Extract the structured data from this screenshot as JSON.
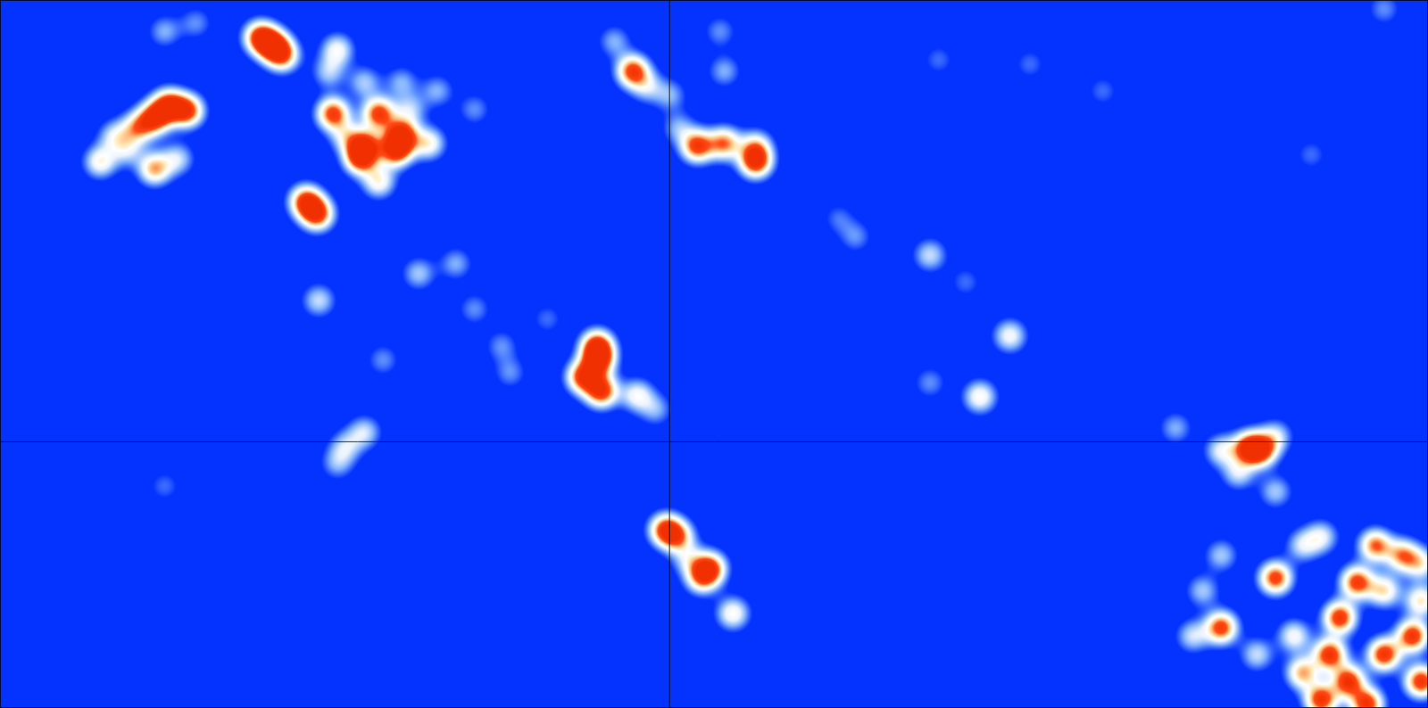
{
  "chart_data": {
    "type": "heatmap",
    "xlim": [
      0,
      100
    ],
    "ylim": [
      0,
      50
    ],
    "xticks": [
      46.9
    ],
    "yticks": [
      18.8
    ],
    "grid": true,
    "tick_labels": false,
    "value_range": [
      0,
      1
    ],
    "points": [
      {
        "x": 18.2,
        "y": 47.4,
        "value": 0.9
      },
      {
        "x": 19.1,
        "y": 46.8,
        "value": 0.9
      },
      {
        "x": 19.8,
        "y": 46.1,
        "value": 0.7
      },
      {
        "x": 11.8,
        "y": 42.6,
        "value": 0.9
      },
      {
        "x": 10.8,
        "y": 41.7,
        "value": 0.9
      },
      {
        "x": 13.1,
        "y": 42.2,
        "value": 0.9
      },
      {
        "x": 9.6,
        "y": 41.0,
        "value": 0.6
      },
      {
        "x": 8.0,
        "y": 40.4,
        "value": 0.4
      },
      {
        "x": 7.0,
        "y": 38.6,
        "value": 0.55
      },
      {
        "x": 10.8,
        "y": 38.1,
        "value": 0.7
      },
      {
        "x": 12.4,
        "y": 38.8,
        "value": 0.4
      },
      {
        "x": 8.9,
        "y": 39.4,
        "value": 0.35
      },
      {
        "x": 23.6,
        "y": 46.5,
        "value": 0.5
      },
      {
        "x": 23.0,
        "y": 44.9,
        "value": 0.35
      },
      {
        "x": 25.5,
        "y": 44.2,
        "value": 0.35
      },
      {
        "x": 28.1,
        "y": 44.2,
        "value": 0.3
      },
      {
        "x": 30.6,
        "y": 43.6,
        "value": 0.3
      },
      {
        "x": 23.3,
        "y": 42.0,
        "value": 0.9
      },
      {
        "x": 26.5,
        "y": 42.0,
        "value": 0.9
      },
      {
        "x": 28.1,
        "y": 40.5,
        "value": 0.95
      },
      {
        "x": 27.7,
        "y": 39.4,
        "value": 0.95
      },
      {
        "x": 25.5,
        "y": 39.7,
        "value": 0.9
      },
      {
        "x": 25.2,
        "y": 38.8,
        "value": 0.8
      },
      {
        "x": 30.0,
        "y": 39.9,
        "value": 0.55
      },
      {
        "x": 26.5,
        "y": 37.2,
        "value": 0.55
      },
      {
        "x": 24.2,
        "y": 40.4,
        "value": 0.4
      },
      {
        "x": 28.7,
        "y": 42.3,
        "value": 0.35
      },
      {
        "x": 33.2,
        "y": 42.3,
        "value": 0.25
      },
      {
        "x": 21.4,
        "y": 35.8,
        "value": 0.9
      },
      {
        "x": 22.2,
        "y": 34.9,
        "value": 0.9
      },
      {
        "x": 22.3,
        "y": 28.8,
        "value": 0.4
      },
      {
        "x": 11.5,
        "y": 47.8,
        "value": 0.3
      },
      {
        "x": 13.7,
        "y": 48.4,
        "value": 0.25
      },
      {
        "x": 29.3,
        "y": 30.7,
        "value": 0.35
      },
      {
        "x": 31.9,
        "y": 31.4,
        "value": 0.3
      },
      {
        "x": 33.2,
        "y": 28.2,
        "value": 0.25
      },
      {
        "x": 35.1,
        "y": 25.6,
        "value": 0.25
      },
      {
        "x": 35.7,
        "y": 23.7,
        "value": 0.25
      },
      {
        "x": 38.3,
        "y": 27.5,
        "value": 0.2
      },
      {
        "x": 41.8,
        "y": 25.6,
        "value": 0.9
      },
      {
        "x": 41.9,
        "y": 24.6,
        "value": 0.9
      },
      {
        "x": 40.8,
        "y": 23.4,
        "value": 0.9
      },
      {
        "x": 42.1,
        "y": 22.4,
        "value": 0.95
      },
      {
        "x": 44.6,
        "y": 22.1,
        "value": 0.5
      },
      {
        "x": 45.9,
        "y": 21.1,
        "value": 0.3
      },
      {
        "x": 26.8,
        "y": 24.6,
        "value": 0.25
      },
      {
        "x": 24.2,
        "y": 18.5,
        "value": 0.35
      },
      {
        "x": 25.5,
        "y": 19.5,
        "value": 0.4
      },
      {
        "x": 23.6,
        "y": 17.3,
        "value": 0.3
      },
      {
        "x": 11.5,
        "y": 15.7,
        "value": 0.2
      },
      {
        "x": 43.0,
        "y": 47.1,
        "value": 0.3
      },
      {
        "x": 44.3,
        "y": 45.0,
        "value": 0.9
      },
      {
        "x": 45.3,
        "y": 43.9,
        "value": 0.35
      },
      {
        "x": 46.9,
        "y": 43.3,
        "value": 0.3
      },
      {
        "x": 50.4,
        "y": 47.8,
        "value": 0.25
      },
      {
        "x": 50.7,
        "y": 45.0,
        "value": 0.3
      },
      {
        "x": 48.8,
        "y": 39.7,
        "value": 0.9
      },
      {
        "x": 50.7,
        "y": 39.9,
        "value": 0.75
      },
      {
        "x": 52.9,
        "y": 38.6,
        "value": 0.95
      },
      {
        "x": 52.9,
        "y": 39.7,
        "value": 0.5
      },
      {
        "x": 47.5,
        "y": 41.0,
        "value": 0.3
      },
      {
        "x": 58.7,
        "y": 34.6,
        "value": 0.2
      },
      {
        "x": 59.9,
        "y": 33.3,
        "value": 0.25
      },
      {
        "x": 65.1,
        "y": 32.0,
        "value": 0.4
      },
      {
        "x": 67.6,
        "y": 30.1,
        "value": 0.2
      },
      {
        "x": 70.7,
        "y": 26.3,
        "value": 0.5
      },
      {
        "x": 68.6,
        "y": 22.0,
        "value": 0.55
      },
      {
        "x": 65.1,
        "y": 23.0,
        "value": 0.25
      },
      {
        "x": 46.6,
        "y": 12.6,
        "value": 0.9
      },
      {
        "x": 47.5,
        "y": 12.1,
        "value": 0.6
      },
      {
        "x": 49.7,
        "y": 9.9,
        "value": 0.85
      },
      {
        "x": 49.1,
        "y": 9.2,
        "value": 0.6
      },
      {
        "x": 51.3,
        "y": 6.7,
        "value": 0.55
      },
      {
        "x": 48.2,
        "y": 10.5,
        "value": 0.35
      },
      {
        "x": 87.4,
        "y": 18.4,
        "value": 0.85
      },
      {
        "x": 88.3,
        "y": 18.2,
        "value": 0.8
      },
      {
        "x": 85.5,
        "y": 18.2,
        "value": 0.45
      },
      {
        "x": 82.3,
        "y": 19.8,
        "value": 0.3
      },
      {
        "x": 89.3,
        "y": 19.2,
        "value": 0.4
      },
      {
        "x": 86.7,
        "y": 16.6,
        "value": 0.4
      },
      {
        "x": 89.3,
        "y": 15.3,
        "value": 0.35
      },
      {
        "x": 85.5,
        "y": 10.8,
        "value": 0.35
      },
      {
        "x": 84.2,
        "y": 8.3,
        "value": 0.35
      },
      {
        "x": 89.3,
        "y": 9.2,
        "value": 0.9
      },
      {
        "x": 91.2,
        "y": 11.5,
        "value": 0.4
      },
      {
        "x": 85.5,
        "y": 5.7,
        "value": 0.9
      },
      {
        "x": 83.5,
        "y": 5.1,
        "value": 0.4
      },
      {
        "x": 92.5,
        "y": 12.1,
        "value": 0.45
      },
      {
        "x": 96.3,
        "y": 11.5,
        "value": 0.8
      },
      {
        "x": 98.2,
        "y": 10.8,
        "value": 0.7
      },
      {
        "x": 95.0,
        "y": 8.9,
        "value": 0.9
      },
      {
        "x": 96.9,
        "y": 8.3,
        "value": 0.6
      },
      {
        "x": 99.5,
        "y": 10.2,
        "value": 0.5
      },
      {
        "x": 93.8,
        "y": 6.4,
        "value": 0.95
      },
      {
        "x": 93.1,
        "y": 3.8,
        "value": 0.95
      },
      {
        "x": 94.4,
        "y": 1.9,
        "value": 0.95
      },
      {
        "x": 96.9,
        "y": 3.8,
        "value": 0.95
      },
      {
        "x": 98.9,
        "y": 5.1,
        "value": 0.95
      },
      {
        "x": 99.5,
        "y": 1.9,
        "value": 0.95
      },
      {
        "x": 92.5,
        "y": 0.6,
        "value": 0.95
      },
      {
        "x": 95.7,
        "y": 0.3,
        "value": 0.95
      },
      {
        "x": 91.2,
        "y": 2.5,
        "value": 0.7
      },
      {
        "x": 90.6,
        "y": 5.1,
        "value": 0.5
      },
      {
        "x": 88.0,
        "y": 3.8,
        "value": 0.4
      },
      {
        "x": 99.5,
        "y": 7.6,
        "value": 0.6
      },
      {
        "x": 65.7,
        "y": 45.8,
        "value": 0.2
      },
      {
        "x": 77.2,
        "y": 43.6,
        "value": 0.2
      },
      {
        "x": 91.8,
        "y": 39.1,
        "value": 0.2
      },
      {
        "x": 96.9,
        "y": 49.4,
        "value": 0.25
      },
      {
        "x": 72.1,
        "y": 45.5,
        "value": 0.2
      }
    ]
  }
}
